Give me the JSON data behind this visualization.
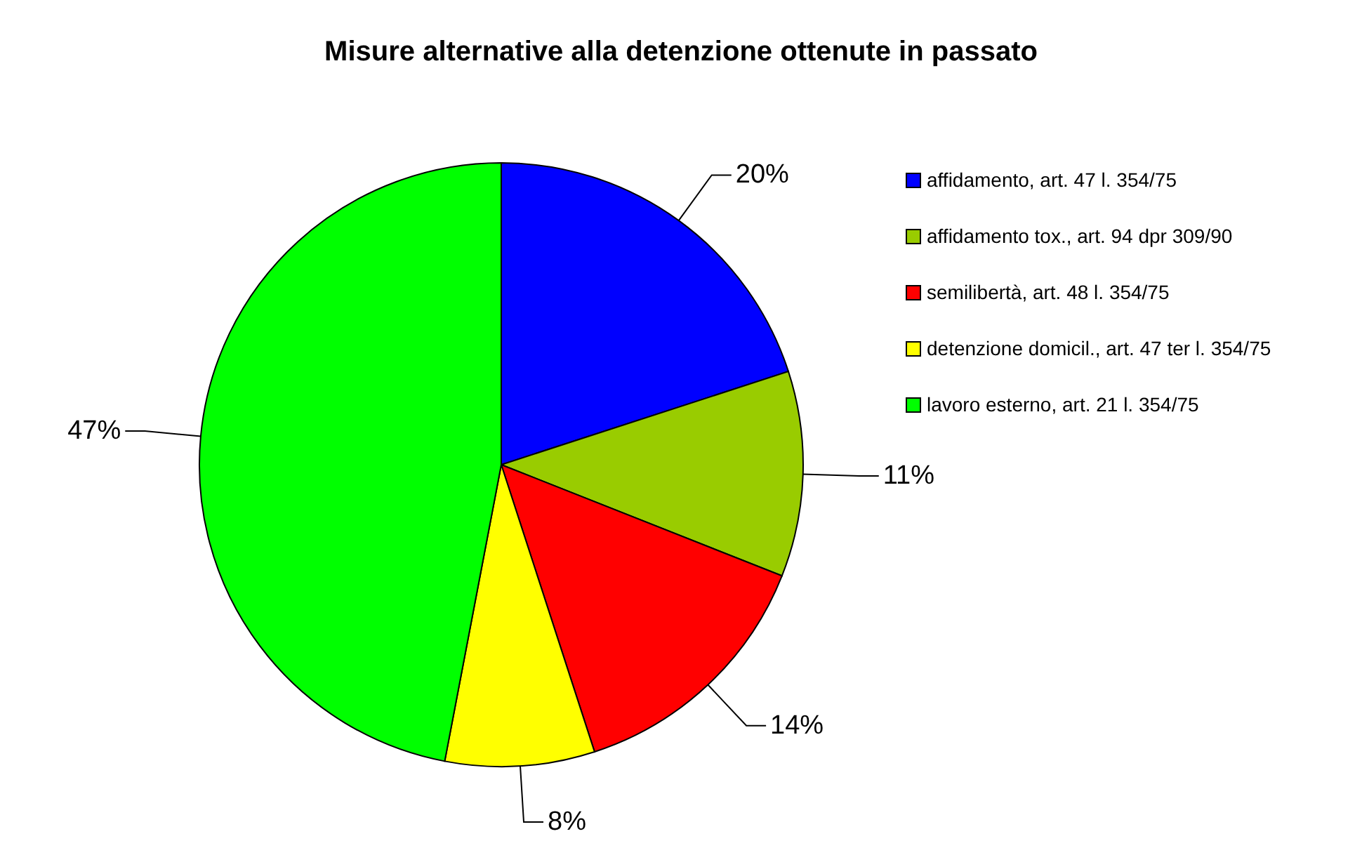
{
  "chart_data": {
    "type": "pie",
    "title": "Misure alternative alla detenzione ottenute in passato",
    "categories": [
      "affidamento, art. 47 l. 354/75",
      "affidamento tox., art. 94 dpr 309/90",
      "semilibertà, art. 48 l. 354/75",
      "detenzione domicil., art. 47 ter l. 354/75",
      "lavoro esterno, art. 21 l. 354/75"
    ],
    "values": [
      20,
      11,
      14,
      8,
      47
    ],
    "colors": [
      "#0000ff",
      "#99cc00",
      "#ff0000",
      "#ffff00",
      "#00ff00"
    ],
    "value_labels": [
      "20%",
      "11%",
      "14%",
      "8%",
      "47%"
    ],
    "legend": "top right"
  }
}
